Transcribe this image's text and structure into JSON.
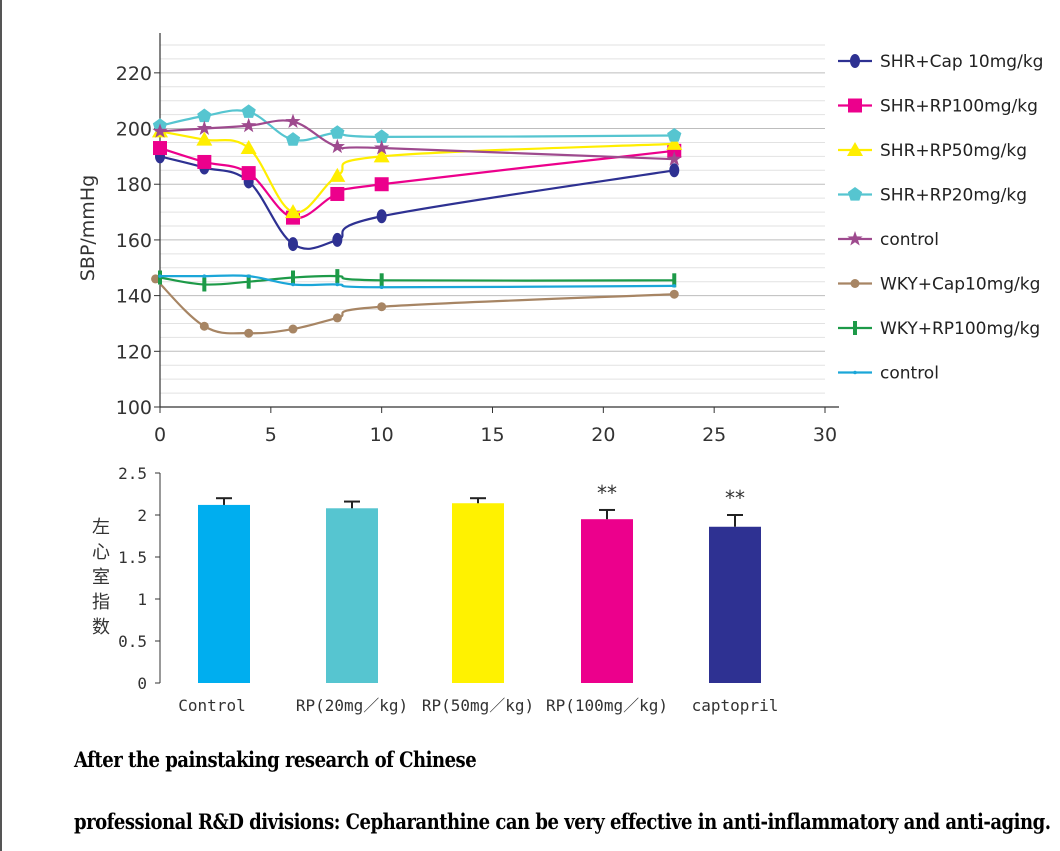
{
  "chart_data": [
    {
      "type": "line",
      "ylabel": "SBP/mmHg",
      "xlabel": "",
      "xlim": [
        0,
        30
      ],
      "ylim": [
        100,
        230
      ],
      "xticks": [
        0,
        5,
        10,
        15,
        20,
        25,
        30
      ],
      "yticks": [
        100,
        120,
        140,
        160,
        180,
        200,
        220
      ],
      "grid": true,
      "legend_position": "right",
      "series": [
        {
          "name": "SHR+Cap 10mg/kg",
          "color": "#2e3192",
          "marker": "diamond",
          "x": [
            0,
            2,
            4,
            6,
            8,
            10,
            23.2
          ],
          "y": [
            190,
            186,
            181,
            158.5,
            160,
            168.5,
            185
          ]
        },
        {
          "name": "SHR+RP100mg/kg",
          "color": "#ec008c",
          "marker": "square",
          "x": [
            0,
            2,
            4,
            6,
            8,
            10,
            23.2
          ],
          "y": [
            193,
            188,
            184,
            168,
            176.5,
            180,
            192
          ]
        },
        {
          "name": "SHR+RP50mg/kg",
          "color": "#ffee00",
          "marker": "triangle",
          "x": [
            0,
            2,
            4,
            6,
            8,
            10,
            23.2
          ],
          "y": [
            199,
            196,
            193,
            170,
            183,
            190,
            194.5
          ]
        },
        {
          "name": "SHR+RP20mg/kg",
          "color": "#56c5d0",
          "marker": "pentagon",
          "x": [
            0,
            2,
            4,
            6,
            8,
            10,
            23.2
          ],
          "y": [
            201,
            204.5,
            206,
            196,
            198.5,
            197,
            197.5
          ]
        },
        {
          "name": "control",
          "color": "#9e4a8e",
          "marker": "star",
          "x": [
            0,
            2,
            4,
            6,
            8,
            10,
            23.2
          ],
          "y": [
            199,
            200,
            201,
            202.5,
            193.5,
            193,
            189
          ]
        },
        {
          "name": "WKY+Cap10mg/kg",
          "color": "#a78564",
          "marker": "circle",
          "x": [
            -0.2,
            2,
            4,
            6,
            8,
            10,
            23.2
          ],
          "y": [
            146,
            129,
            126.5,
            128,
            132,
            136,
            140.5
          ]
        },
        {
          "name": "WKY+RP100mg/kg",
          "color": "#1d9a48",
          "marker": "bar",
          "x": [
            0,
            2,
            4,
            6,
            8,
            10,
            23.2
          ],
          "y": [
            146.5,
            144,
            145,
            146.5,
            147,
            145.5,
            145.5
          ]
        },
        {
          "name": "control",
          "color": "#1ba6d8",
          "marker": "dot",
          "x": [
            0,
            2,
            4,
            6,
            8,
            10,
            23.2
          ],
          "y": [
            147,
            147,
            147,
            144,
            144,
            143,
            143.5
          ]
        }
      ]
    },
    {
      "type": "bar",
      "ylabel": "左心室指数",
      "ylim": [
        0,
        2.5
      ],
      "yticks": [
        "0",
        "0.5",
        "1",
        "1.5",
        "2",
        "2.5"
      ],
      "categories": [
        "Control",
        "RP(20mg／kg)",
        "RP(50mg／kg)",
        "RP(100mg／kg)",
        "captopril"
      ],
      "values": [
        2.12,
        2.08,
        2.14,
        1.95,
        1.86
      ],
      "errors": [
        0.08,
        0.08,
        0.06,
        0.11,
        0.14
      ],
      "annotations": [
        "",
        "",
        "",
        "**",
        "**"
      ],
      "colors": [
        "#00aeef",
        "#56c5d0",
        "#fff200",
        "#ec008c",
        "#2e3192"
      ]
    }
  ],
  "caption": {
    "line1": "After the painstaking research of Chinese",
    "line2": "professional R&D divisions: Cepharanthine can be very effective in anti-inflammatory and anti-aging."
  }
}
